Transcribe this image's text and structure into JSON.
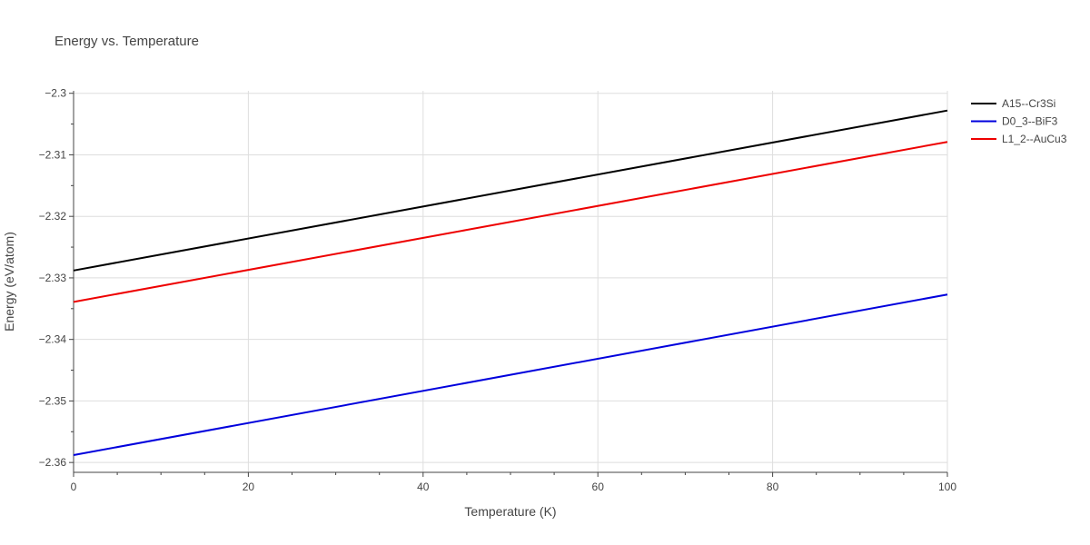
{
  "chart_data": {
    "type": "line",
    "title": "Energy vs. Temperature",
    "xlabel": "Temperature (K)",
    "ylabel": "Energy (eV/atom)",
    "xlim": [
      0,
      100
    ],
    "ylim": [
      -2.3616,
      -2.2996
    ],
    "x_ticks": [
      0,
      20,
      40,
      60,
      80,
      100
    ],
    "x_tick_labels": [
      "0",
      "20",
      "40",
      "60",
      "80",
      "100"
    ],
    "y_ticks": [
      -2.36,
      -2.35,
      -2.34,
      -2.33,
      -2.32,
      -2.31,
      -2.3
    ],
    "y_tick_labels": [
      "−2.36",
      "−2.35",
      "−2.34",
      "−2.33",
      "−2.32",
      "−2.31",
      "−2.3"
    ],
    "grid": true,
    "legend_position": "top-right",
    "series": [
      {
        "name": "A15--Cr3Si",
        "color": "#000000",
        "x": [
          0,
          100
        ],
        "y": [
          -2.3288,
          -2.3028
        ]
      },
      {
        "name": "D0_3--BiF3",
        "color": "#0000dd",
        "x": [
          0,
          100
        ],
        "y": [
          -2.3588,
          -2.3327
        ]
      },
      {
        "name": "L1_2--AuCu3",
        "color": "#ee0000",
        "x": [
          0,
          100
        ],
        "y": [
          -2.3339,
          -2.3079
        ]
      }
    ]
  }
}
